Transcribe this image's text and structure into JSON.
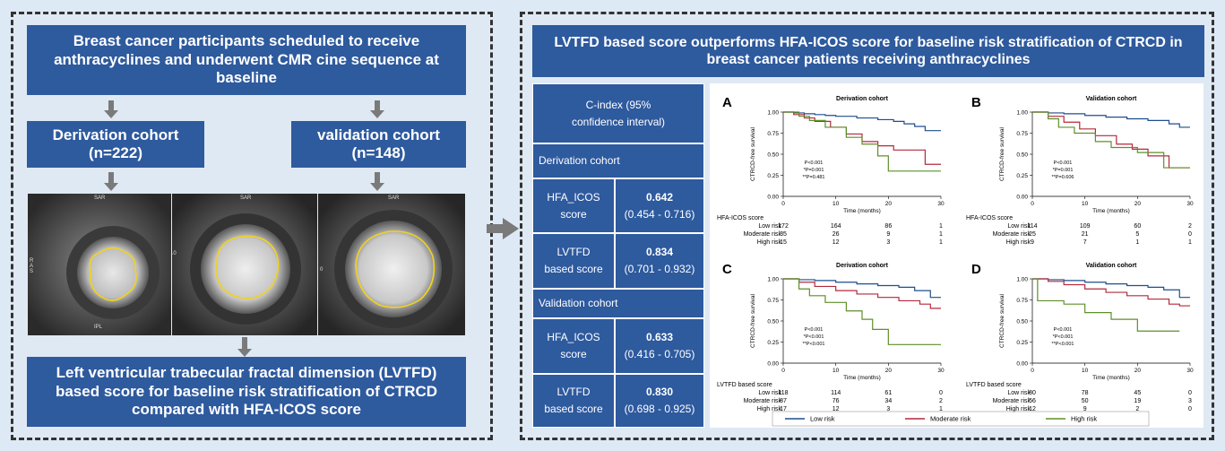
{
  "left": {
    "top_box": "Breast cancer participants scheduled to receive anthracyclines and underwent CMR cine sequence at baseline",
    "derivation": {
      "title": "Derivation cohort",
      "n": "(n=222)"
    },
    "validation": {
      "title": "validation cohort",
      "n": "(n=148)"
    },
    "mri_labels": {
      "top": "SAR",
      "bottom": "IPL",
      "left": "R A S",
      "right": "L P I",
      "scale_10": "10",
      "scale_0": "0"
    },
    "bottom_box": "Left ventricular trabecular fractal dimension (LVTFD) based score for baseline risk stratification of CTRCD compared with HFA-ICOS score"
  },
  "right": {
    "title": "LVTFD based score outperforms HFA-ICOS score for baseline risk stratification of CTRCD in breast cancer patients receiving anthracyclines",
    "table": {
      "header": "C-index (95% confidence interval)",
      "derivation_label": "Derivation cohort",
      "validation_label": "Validation cohort",
      "rows": [
        {
          "name": "HFA_ICOS score",
          "value": "0.642",
          "ci": "(0.454 - 0.716)"
        },
        {
          "name": "LVTFD based score",
          "value": "0.834",
          "ci": "(0.701 - 0.932)"
        },
        {
          "name": "HFA_ICOS score",
          "value": "0.633",
          "ci": "(0.416 - 0.705)"
        },
        {
          "name": "LVTFD based score",
          "value": "0.830",
          "ci": "(0.698 - 0.925)"
        }
      ]
    },
    "legend": [
      "Low risk",
      "Moderate risk",
      "High risk"
    ]
  },
  "colors": {
    "low": "#1f4e8c",
    "moderate": "#b5283c",
    "high": "#5f8f2a",
    "box": "#2e5a9e"
  },
  "chart_data": [
    {
      "type": "line",
      "letter": "A",
      "title": "Derivation cohort",
      "xlabel": "Time (months)",
      "ylabel": "CTRCD-free survival",
      "xlim": [
        0,
        30
      ],
      "ylim": [
        0,
        1
      ],
      "xticks": [
        0,
        10,
        20,
        30
      ],
      "yticks": [
        "0.00",
        "0.25",
        "0.50",
        "0.75",
        "1.00"
      ],
      "pvals": [
        "P<0.001",
        "*P=0.001",
        "**P=0.481"
      ],
      "risk_table_title": "HFA-ICOS score",
      "risk_rows": [
        {
          "label": "Low risk",
          "counts": [
            "172",
            "164",
            "86",
            "1"
          ]
        },
        {
          "label": "Moderate risk",
          "counts": [
            "35",
            "26",
            "9",
            "1"
          ]
        },
        {
          "label": "High risk",
          "counts": [
            "15",
            "12",
            "3",
            "1"
          ]
        }
      ],
      "series": [
        {
          "name": "Low risk",
          "x": [
            0,
            2,
            4,
            6,
            8,
            10,
            14,
            18,
            21,
            23,
            25,
            27,
            30
          ],
          "y": [
            1,
            0.99,
            0.98,
            0.97,
            0.96,
            0.95,
            0.93,
            0.91,
            0.89,
            0.86,
            0.83,
            0.78,
            0.78
          ]
        },
        {
          "name": "Moderate risk",
          "x": [
            0,
            2,
            4,
            6,
            9,
            12,
            15,
            18,
            21,
            24,
            27,
            30
          ],
          "y": [
            1,
            0.97,
            0.93,
            0.89,
            0.82,
            0.74,
            0.65,
            0.6,
            0.55,
            0.55,
            0.38,
            0.38
          ]
        },
        {
          "name": "High risk",
          "x": [
            0,
            3,
            5,
            8,
            12,
            15,
            18,
            20,
            26,
            30
          ],
          "y": [
            1,
            0.95,
            0.9,
            0.82,
            0.7,
            0.62,
            0.48,
            0.3,
            0.3,
            0.3
          ]
        }
      ]
    },
    {
      "type": "line",
      "letter": "B",
      "title": "Validation cohort",
      "xlabel": "Time (months)",
      "ylabel": "CTRCD-free survival",
      "xlim": [
        0,
        30
      ],
      "ylim": [
        0,
        1
      ],
      "xticks": [
        0,
        10,
        20,
        30
      ],
      "yticks": [
        "0.00",
        "0.25",
        "0.50",
        "0.75",
        "1.00"
      ],
      "pvals": [
        "P<0.001",
        "*P=0.001",
        "**P=0.606"
      ],
      "risk_table_title": "HFA-ICOS score",
      "risk_rows": [
        {
          "label": "Low risk",
          "counts": [
            "114",
            "109",
            "60",
            "2"
          ]
        },
        {
          "label": "Moderate risk",
          "counts": [
            "25",
            "21",
            "5",
            "0"
          ]
        },
        {
          "label": "High risk",
          "counts": [
            "9",
            "7",
            "1",
            "1"
          ]
        }
      ],
      "series": [
        {
          "name": "Low risk",
          "x": [
            0,
            3,
            6,
            10,
            14,
            18,
            22,
            26,
            28,
            30
          ],
          "y": [
            1,
            0.99,
            0.98,
            0.96,
            0.94,
            0.92,
            0.9,
            0.86,
            0.82,
            0.82
          ]
        },
        {
          "name": "Moderate risk",
          "x": [
            0,
            3,
            6,
            9,
            12,
            16,
            19,
            22,
            26,
            30
          ],
          "y": [
            1,
            0.95,
            0.88,
            0.8,
            0.72,
            0.62,
            0.56,
            0.48,
            0.34,
            0.34
          ]
        },
        {
          "name": "High risk",
          "x": [
            0,
            3,
            5,
            8,
            12,
            15,
            20,
            25,
            30
          ],
          "y": [
            1,
            0.92,
            0.82,
            0.75,
            0.65,
            0.58,
            0.52,
            0.34,
            0.34
          ]
        }
      ]
    },
    {
      "type": "line",
      "letter": "C",
      "title": "Derivation cohort",
      "xlabel": "Time (months)",
      "ylabel": "CTRCD-free survival",
      "xlim": [
        0,
        30
      ],
      "ylim": [
        0,
        1
      ],
      "xticks": [
        0,
        10,
        20,
        30
      ],
      "yticks": [
        "0.00",
        "0.25",
        "0.50",
        "0.75",
        "1.00"
      ],
      "pvals": [
        "P<0.001",
        "*P<0.001",
        "**P<0.001"
      ],
      "risk_table_title": "LVTFD based score",
      "risk_rows": [
        {
          "label": "Low risk",
          "counts": [
            "118",
            "114",
            "61",
            "0"
          ]
        },
        {
          "label": "Moderate risk",
          "counts": [
            "87",
            "76",
            "34",
            "2"
          ]
        },
        {
          "label": "High risk",
          "counts": [
            "17",
            "12",
            "3",
            "1"
          ]
        }
      ],
      "series": [
        {
          "name": "Low risk",
          "x": [
            0,
            3,
            6,
            10,
            14,
            18,
            22,
            25,
            28,
            30
          ],
          "y": [
            1,
            0.99,
            0.98,
            0.96,
            0.94,
            0.92,
            0.9,
            0.86,
            0.78,
            0.78
          ]
        },
        {
          "name": "Moderate risk",
          "x": [
            0,
            3,
            6,
            10,
            14,
            18,
            22,
            26,
            28,
            30
          ],
          "y": [
            1,
            0.96,
            0.91,
            0.86,
            0.82,
            0.78,
            0.74,
            0.7,
            0.65,
            0.65
          ]
        },
        {
          "name": "High risk",
          "x": [
            0,
            3,
            5,
            8,
            12,
            15,
            17,
            20,
            30
          ],
          "y": [
            1,
            0.88,
            0.8,
            0.72,
            0.62,
            0.52,
            0.4,
            0.22,
            0.22
          ]
        }
      ]
    },
    {
      "type": "line",
      "letter": "D",
      "title": "Validation cohort",
      "xlabel": "Time (months)",
      "ylabel": "CTRCD-free survival",
      "xlim": [
        0,
        30
      ],
      "ylim": [
        0,
        1
      ],
      "xticks": [
        0,
        10,
        20,
        30
      ],
      "yticks": [
        "0.00",
        "0.25",
        "0.50",
        "0.75",
        "1.00"
      ],
      "pvals": [
        "P<0.001",
        "*P<0.001",
        "**P<0.001"
      ],
      "risk_table_title": "LVTFD based score",
      "risk_rows": [
        {
          "label": "Low risk",
          "counts": [
            "80",
            "78",
            "45",
            "0"
          ]
        },
        {
          "label": "Moderate risk",
          "counts": [
            "56",
            "50",
            "19",
            "3"
          ]
        },
        {
          "label": "High risk",
          "counts": [
            "12",
            "9",
            "2",
            "0"
          ]
        }
      ],
      "series": [
        {
          "name": "Low risk",
          "x": [
            0,
            3,
            6,
            10,
            14,
            18,
            22,
            25,
            28,
            30
          ],
          "y": [
            1,
            0.99,
            0.98,
            0.96,
            0.94,
            0.92,
            0.9,
            0.87,
            0.78,
            0.78
          ]
        },
        {
          "name": "Moderate risk",
          "x": [
            0,
            3,
            6,
            10,
            14,
            18,
            22,
            26,
            28,
            30
          ],
          "y": [
            1,
            0.97,
            0.93,
            0.88,
            0.84,
            0.8,
            0.76,
            0.7,
            0.68,
            0.68
          ]
        },
        {
          "name": "High risk",
          "x": [
            0,
            1,
            3,
            6,
            10,
            15,
            20,
            25,
            28
          ],
          "y": [
            1,
            0.74,
            0.74,
            0.7,
            0.6,
            0.52,
            0.38,
            0.38,
            0.38
          ]
        }
      ]
    }
  ]
}
